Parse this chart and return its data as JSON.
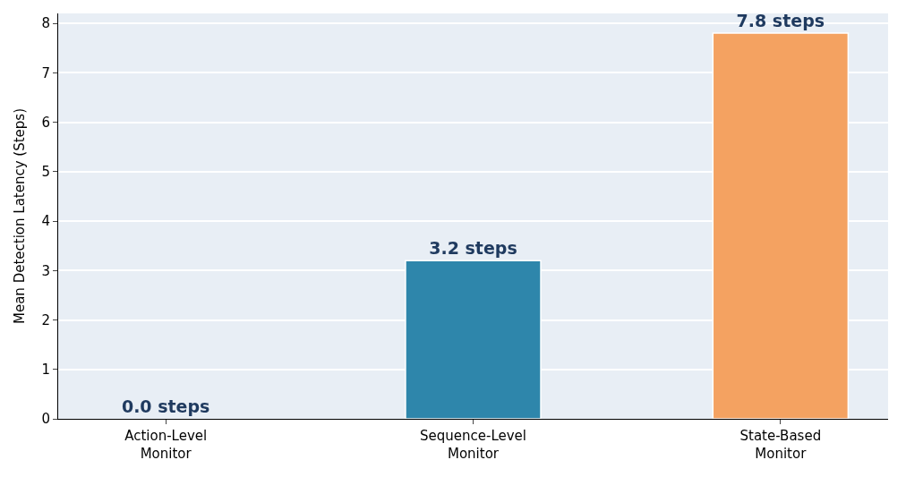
{
  "chart_data": {
    "type": "bar",
    "ylabel": "Mean Detection Latency (Steps)",
    "categories": [
      "Action-Level\nMonitor",
      "Sequence-Level\nMonitor",
      "State-Based\nMonitor"
    ],
    "values": [
      0.0,
      3.2,
      7.8
    ],
    "colors": [
      "#2e86ab",
      "#2e86ab",
      "#f4a261"
    ],
    "value_labels": [
      "0.0 steps",
      "3.2 steps",
      "7.8 steps"
    ],
    "ylim": [
      0,
      8.2
    ],
    "yticks": [
      0,
      1,
      2,
      3,
      4,
      5,
      6,
      7,
      8
    ],
    "grid": "y",
    "legend": false
  }
}
